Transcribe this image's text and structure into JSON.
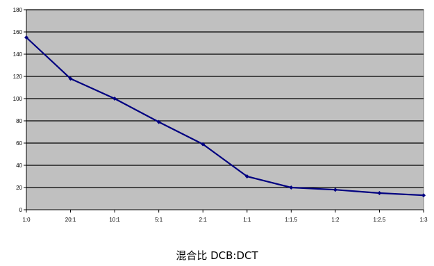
{
  "chart_data": {
    "type": "line",
    "title": "",
    "xlabel": "混合比 DCB:DCT",
    "ylabel": "",
    "categories": [
      "1:0",
      "20:1",
      "10:1",
      "5:1",
      "2:1",
      "1:1",
      "1:1.5",
      "1:2",
      "1:2.5",
      "1:3"
    ],
    "series": [
      {
        "values": [
          155,
          118,
          100,
          79,
          59,
          30,
          20,
          18,
          15,
          13
        ]
      }
    ],
    "ylim": [
      0,
      180
    ],
    "ytick_step": 20,
    "yticks": [
      "0",
      "20",
      "40",
      "60",
      "80",
      "100",
      "120",
      "140",
      "160",
      "180"
    ],
    "grid": true,
    "legend": "none",
    "colors": {
      "plot_bg": "#c0c0c0",
      "line": "#000080",
      "grid": "#000000"
    }
  }
}
